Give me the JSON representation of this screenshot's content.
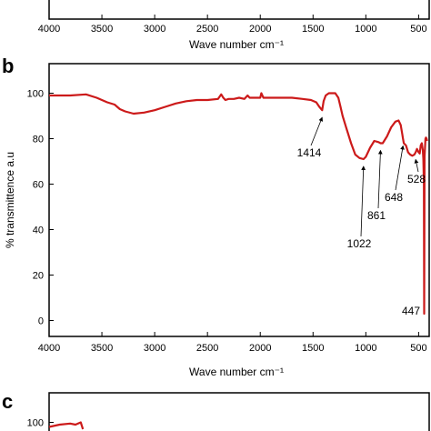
{
  "chart_data": [
    {
      "type": "line",
      "panel": "a",
      "xlabel": "Wave number cm⁻¹",
      "xlim": [
        4000,
        400
      ],
      "x_ticks": [
        "4000",
        "3500",
        "3000",
        "2500",
        "2000",
        "1500",
        "1000",
        "500"
      ],
      "series": [],
      "colors": {
        "axis": "#000000"
      }
    },
    {
      "type": "line",
      "panel": "b",
      "xlabel": "Wave number cm⁻¹",
      "ylabel": "% transmittence a.u",
      "xlim": [
        4000,
        400
      ],
      "ylim": [
        -7,
        113
      ],
      "x_ticks": [
        "4000",
        "3500",
        "3000",
        "2500",
        "2000",
        "1500",
        "1000",
        "500"
      ],
      "y_ticks": [
        "0",
        "20",
        "40",
        "60",
        "80",
        "100"
      ],
      "y_tick_values": [
        0,
        20,
        40,
        60,
        80,
        100
      ],
      "colors": {
        "line": "#cc1a1a",
        "axis": "#000000"
      },
      "series": [
        {
          "x": [
            4000,
            3800,
            3650,
            3550,
            3450,
            3380,
            3330,
            3280,
            3200,
            3100,
            3000,
            2900,
            2800,
            2700,
            2600,
            2500,
            2400,
            2370,
            2350,
            2330,
            2300,
            2250,
            2200,
            2150,
            2120,
            2100,
            2000,
            1990,
            1970,
            1900,
            1800,
            1700,
            1600,
            1520,
            1470,
            1440,
            1414,
            1400,
            1380,
            1350,
            1320,
            1290,
            1260,
            1240,
            1220,
            1180,
            1140,
            1100,
            1060,
            1022,
            1000,
            960,
            920,
            880,
            861,
            840,
            800,
            760,
            720,
            690,
            670,
            655,
            648,
            640,
            620,
            600,
            580,
            560,
            540,
            528,
            515,
            500,
            490,
            480,
            470,
            460,
            455,
            450,
            447,
            444,
            440,
            435,
            430,
            425,
            420
          ],
          "y": [
            99,
            99,
            99.5,
            98,
            96,
            95,
            93,
            92,
            91,
            91.5,
            92.5,
            94,
            95.5,
            96.5,
            97,
            97,
            97.5,
            99.5,
            98,
            97,
            97.5,
            97.5,
            98,
            97.5,
            99,
            98,
            98,
            100,
            98,
            98,
            98,
            98,
            97.5,
            97,
            96,
            94,
            92.5,
            96.5,
            99,
            100,
            100,
            100,
            98,
            94,
            90,
            84,
            78,
            73,
            71.5,
            71,
            72,
            76,
            79,
            78.5,
            78,
            78,
            81,
            85,
            87.5,
            88,
            86,
            82,
            80,
            78,
            77,
            74,
            73,
            72.5,
            73,
            74,
            75.5,
            74,
            73.5,
            77,
            78,
            75,
            71,
            60,
            3,
            72,
            76,
            80,
            80.5,
            80,
            79
          ]
        }
      ],
      "annotations": [
        {
          "label": "1414",
          "x": 1414
        },
        {
          "label": "1022",
          "x": 1022
        },
        {
          "label": "861",
          "x": 861
        },
        {
          "label": "648",
          "x": 648
        },
        {
          "label": "528",
          "x": 528
        },
        {
          "label": "447",
          "x": 447
        }
      ]
    },
    {
      "type": "line",
      "panel": "c",
      "ylim": [
        -7,
        113
      ],
      "y_ticks": [
        "100"
      ],
      "y_tick_values": [
        100
      ],
      "colors": {
        "line": "#cc1a1a",
        "axis": "#000000"
      },
      "series": [
        {
          "x": [
            4000,
            3900,
            3800,
            3750,
            3700,
            3680
          ],
          "y": [
            98,
            99,
            99.5,
            99,
            100,
            97
          ]
        }
      ]
    }
  ],
  "panels": {
    "a": {
      "letter": ""
    },
    "b": {
      "letter": "b"
    },
    "c": {
      "letter": "c"
    }
  }
}
